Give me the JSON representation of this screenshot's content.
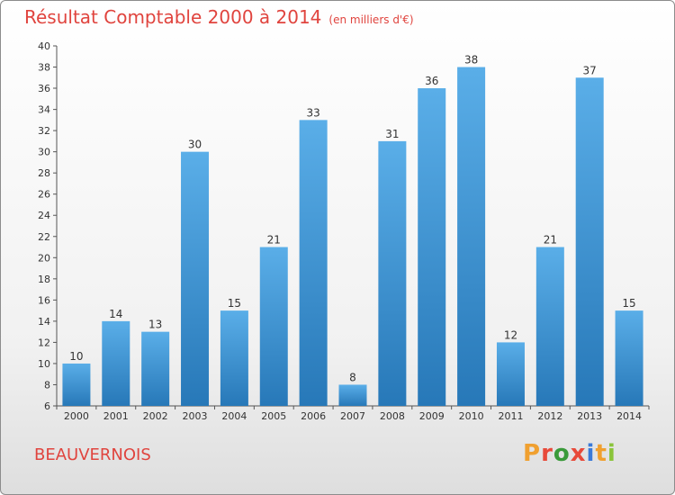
{
  "title": "Résultat Comptable 2000 à 2014",
  "subtitle": "(en milliers d'€)",
  "commune": "BEAUVERNOIS",
  "logo": "Proxiti",
  "colors": {
    "title": "#e0443e",
    "bar_light": "#5aaee8",
    "bar_dark": "#2778b8",
    "logo_letters": [
      "#f0a030",
      "#e84a3a",
      "#3a9a3a",
      "#e84a3a",
      "#3a7ad8",
      "#f0a030",
      "#8ac43a"
    ]
  },
  "chart_data": {
    "type": "bar",
    "title": "Résultat Comptable 2000 à 2014",
    "subtitle": "(en milliers d'€)",
    "xlabel": "",
    "ylabel": "",
    "categories": [
      "2000",
      "2001",
      "2002",
      "2003",
      "2004",
      "2005",
      "2006",
      "2007",
      "2008",
      "2009",
      "2010",
      "2011",
      "2012",
      "2013",
      "2014"
    ],
    "values": [
      10,
      14,
      13,
      30,
      15,
      21,
      33,
      8,
      31,
      36,
      38,
      12,
      21,
      37,
      15
    ],
    "ylim": [
      6,
      40
    ],
    "yticks": [
      6,
      8,
      10,
      12,
      14,
      16,
      18,
      20,
      22,
      24,
      26,
      28,
      30,
      32,
      34,
      36,
      38,
      40
    ],
    "grid": false,
    "legend": "none"
  }
}
